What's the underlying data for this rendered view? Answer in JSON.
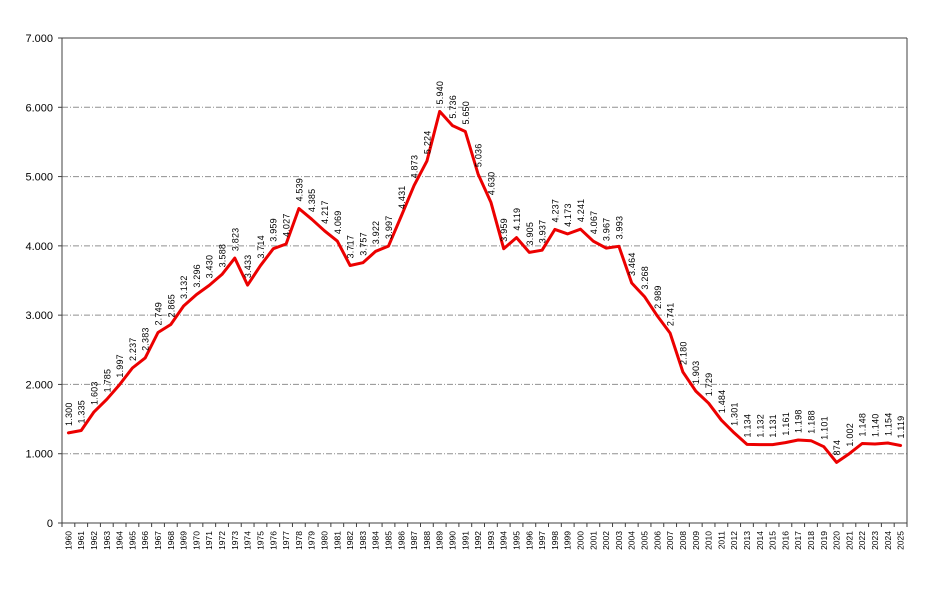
{
  "chart_data": {
    "type": "line",
    "title": "",
    "xlabel": "",
    "ylabel": "",
    "legend": "none",
    "grid": "horizontal-dash-dot",
    "ylim": [
      0,
      7000
    ],
    "y_ticks": [
      0,
      1000,
      2000,
      3000,
      4000,
      5000,
      6000,
      7000
    ],
    "y_tick_labels": [
      "0",
      "1.000",
      "2.000",
      "3.000",
      "4.000",
      "5.000",
      "6.000",
      "7.000"
    ],
    "series_color": "#ec0000",
    "grid_color": "#909090",
    "axis_color": "#404040",
    "point_labels_visible": true,
    "number_format": "thousands-dot",
    "categories": [
      1960,
      1961,
      1962,
      1963,
      1964,
      1965,
      1966,
      1967,
      1968,
      1969,
      1970,
      1971,
      1972,
      1973,
      1974,
      1975,
      1976,
      1977,
      1978,
      1979,
      1980,
      1981,
      1982,
      1983,
      1984,
      1985,
      1986,
      1987,
      1988,
      1989,
      1990,
      1991,
      1992,
      1993,
      1994,
      1995,
      1996,
      1997,
      1998,
      1999,
      2000,
      2001,
      2002,
      2003,
      2004,
      2005,
      2006,
      2007,
      2008,
      2009,
      2010,
      2011,
      2012,
      2013,
      2014,
      2015,
      2016,
      2017,
      2018,
      2019,
      2020,
      2021,
      2022,
      2023,
      2024,
      2025
    ],
    "values": [
      1300,
      1335,
      1603,
      1785,
      1997,
      2237,
      2383,
      2749,
      2865,
      3132,
      3296,
      3430,
      3588,
      3823,
      3433,
      3714,
      3959,
      4027,
      4539,
      4385,
      4217,
      4069,
      3717,
      3757,
      3922,
      3997,
      4431,
      4873,
      5224,
      5940,
      5736,
      5650,
      5036,
      4630,
      3959,
      4119,
      3905,
      3937,
      4237,
      4173,
      4241,
      4067,
      3967,
      3993,
      3464,
      3268,
      2989,
      2741,
      2180,
      1903,
      1729,
      1484,
      1301,
      1134,
      1132,
      1131,
      1161,
      1198,
      1188,
      1101,
      874,
      1002,
      1148,
      1140,
      1154,
      1119
    ]
  }
}
